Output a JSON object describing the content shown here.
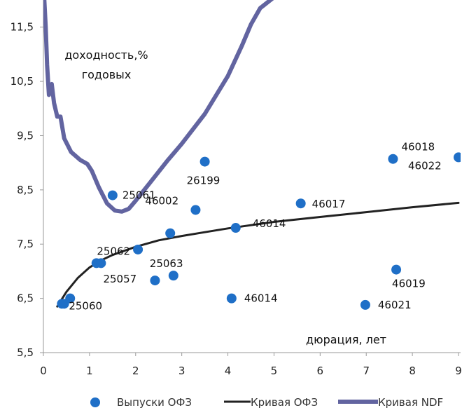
{
  "chart_data": {
    "type": "scatter",
    "xlim": [
      0,
      9
    ],
    "ylim": [
      5.5,
      12.0
    ],
    "x_ticks": [
      "0",
      "1",
      "2",
      "3",
      "4",
      "5",
      "6",
      "7",
      "8",
      "9"
    ],
    "y_ticks": [
      "5,5",
      "6,5",
      "7,5",
      "8,5",
      "9,5",
      "10,5",
      "11,5"
    ],
    "grid": false,
    "annotations": {
      "ylabel_line1": "доходность,%",
      "ylabel_line2": "годовых",
      "xlabel": "дюрация, лет"
    },
    "legend": {
      "placement": "bottom",
      "entries": [
        "Выпуски ОФЗ",
        "Кривая ОФЗ",
        "Кривая NDF"
      ]
    },
    "colors": {
      "points": "#1f6fc7",
      "ofz_curve": "#222222",
      "ndf_curve": "#6264a0"
    },
    "points": [
      {
        "x": 0.4,
        "y": 6.4,
        "label": "25060"
      },
      {
        "x": 0.45,
        "y": 6.4,
        "label": ""
      },
      {
        "x": 0.58,
        "y": 6.5,
        "label": ""
      },
      {
        "x": 1.15,
        "y": 7.15,
        "label": ""
      },
      {
        "x": 1.25,
        "y": 7.15,
        "label": "25062"
      },
      {
        "x": 1.5,
        "y": 8.4,
        "label": "25061"
      },
      {
        "x": 2.05,
        "y": 7.4,
        "label": ""
      },
      {
        "x": 2.42,
        "y": 6.83,
        "label": "25057"
      },
      {
        "x": 2.75,
        "y": 7.7,
        "label": ""
      },
      {
        "x": 2.82,
        "y": 6.92,
        "label": "25063"
      },
      {
        "x": 3.3,
        "y": 8.13,
        "label": "46002"
      },
      {
        "x": 3.5,
        "y": 9.02,
        "label": "26199"
      },
      {
        "x": 4.08,
        "y": 6.5,
        "label": "46014"
      },
      {
        "x": 4.17,
        "y": 7.8,
        "label": "46014"
      },
      {
        "x": 5.58,
        "y": 8.25,
        "label": "46017"
      },
      {
        "x": 6.98,
        "y": 6.38,
        "label": "46021"
      },
      {
        "x": 7.58,
        "y": 9.07,
        "label": "46018"
      },
      {
        "x": 7.65,
        "y": 7.03,
        "label": "46019"
      },
      {
        "x": 9.0,
        "y": 9.1,
        "label": "46022"
      }
    ],
    "ofz_curve": [
      [
        0.3,
        6.35
      ],
      [
        0.5,
        6.62
      ],
      [
        0.75,
        6.88
      ],
      [
        1.0,
        7.07
      ],
      [
        1.25,
        7.2
      ],
      [
        1.5,
        7.3
      ],
      [
        2.0,
        7.45
      ],
      [
        2.5,
        7.57
      ],
      [
        3.0,
        7.65
      ],
      [
        3.5,
        7.72
      ],
      [
        4.0,
        7.79
      ],
      [
        5.0,
        7.91
      ],
      [
        6.0,
        8.0
      ],
      [
        7.0,
        8.09
      ],
      [
        8.0,
        8.18
      ],
      [
        9.0,
        8.26
      ]
    ],
    "ndf_curve": [
      [
        0.02,
        12.0
      ],
      [
        0.05,
        11.5
      ],
      [
        0.08,
        10.8
      ],
      [
        0.12,
        10.25
      ],
      [
        0.18,
        10.45
      ],
      [
        0.23,
        10.1
      ],
      [
        0.3,
        9.85
      ],
      [
        0.37,
        9.85
      ],
      [
        0.45,
        9.45
      ],
      [
        0.6,
        9.2
      ],
      [
        0.8,
        9.05
      ],
      [
        0.95,
        8.98
      ],
      [
        1.05,
        8.85
      ],
      [
        1.2,
        8.55
      ],
      [
        1.38,
        8.25
      ],
      [
        1.55,
        8.12
      ],
      [
        1.7,
        8.1
      ],
      [
        1.85,
        8.15
      ],
      [
        2.0,
        8.3
      ],
      [
        2.3,
        8.62
      ],
      [
        2.7,
        9.05
      ],
      [
        3.0,
        9.35
      ],
      [
        3.5,
        9.9
      ],
      [
        4.0,
        10.6
      ],
      [
        4.3,
        11.15
      ],
      [
        4.5,
        11.55
      ],
      [
        4.7,
        11.85
      ],
      [
        5.0,
        12.05
      ],
      [
        5.5,
        12.15
      ],
      [
        6.0,
        12.15
      ],
      [
        6.5,
        12.12
      ],
      [
        7.0,
        12.1
      ]
    ]
  }
}
